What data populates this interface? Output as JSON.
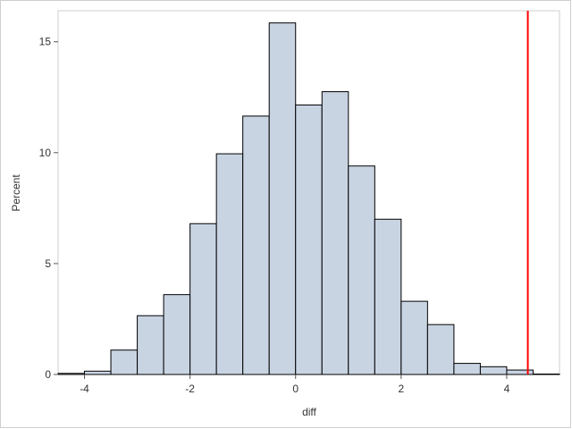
{
  "chart_data": {
    "type": "bar",
    "subtype": "histogram",
    "xlabel": "diff",
    "ylabel": "Percent",
    "xlim": [
      -4.5,
      5.0
    ],
    "ylim": [
      0,
      16.4
    ],
    "bin_width": 0.5,
    "bin_starts": [
      -4.5,
      -4.0,
      -3.5,
      -3.0,
      -2.5,
      -2.0,
      -1.5,
      -1.0,
      -0.5,
      0.0,
      0.5,
      1.0,
      1.5,
      2.0,
      2.5,
      3.0,
      3.5,
      4.0,
      4.5
    ],
    "values": [
      0.05,
      0.15,
      1.1,
      2.65,
      3.6,
      6.8,
      9.95,
      11.65,
      15.85,
      12.15,
      12.75,
      9.4,
      7.0,
      3.3,
      2.25,
      0.5,
      0.35,
      0.2,
      0.02
    ],
    "x_ticks": [
      -4,
      -2,
      0,
      2,
      4
    ],
    "x_tick_labels": [
      "-4",
      "-2",
      "0",
      "2",
      "4"
    ],
    "y_ticks": [
      0,
      5,
      10,
      15
    ],
    "y_tick_labels": [
      "0",
      "5",
      "10",
      "15"
    ],
    "reference_line": {
      "x": 4.4,
      "color": "#ff0000"
    },
    "bar_fill": "#c9d4e3",
    "bar_stroke": "#000000",
    "grid": false
  }
}
